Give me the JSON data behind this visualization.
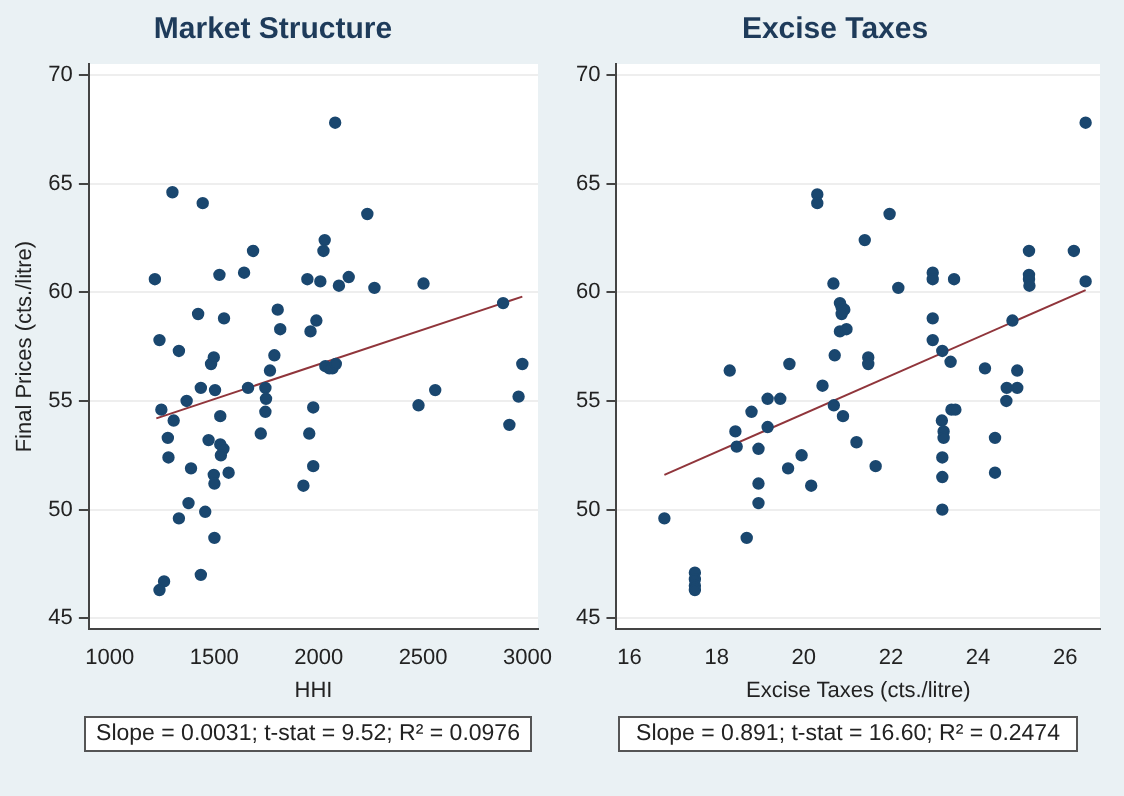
{
  "chart_data": [
    {
      "type": "scatter",
      "title": "Market Structure",
      "xlabel": "HHI",
      "ylabel": "Final Prices (cts./litre)",
      "xlim": [
        900,
        3050
      ],
      "ylim": [
        44.5,
        70.5
      ],
      "xticks": [
        1000,
        1500,
        2000,
        2500,
        3000
      ],
      "yticks": [
        45,
        50,
        55,
        60,
        65,
        70
      ],
      "grid": "y",
      "legend": false,
      "annotations": [
        "Slope = 0.0031; t-stat = 9.52; R² = 0.0976"
      ],
      "series": [
        {
          "color": "#1a476f",
          "marker": "circle",
          "x": [
            1216,
            1238,
            1247,
            1300,
            1331,
            1368,
            1306,
            1423,
            1445,
            1436,
            1485,
            1498,
            1504,
            1525,
            1529,
            1547,
            1643,
            1662,
            1686,
            1723,
            1745,
            1748,
            1745,
            1767,
            1788,
            1804,
            1816,
            1946,
            1961,
            1974,
            1955,
            1989,
            2008,
            2023,
            2029,
            2032,
            2051,
            2066,
            2079,
            2082,
            2097,
            2144,
            2233,
            2267,
            2478,
            2502,
            2558,
            2883,
            2913,
            2957,
            2975,
            1278,
            1281,
            1389,
            1473,
            1529,
            1544,
            1532,
            1498,
            1501,
            1569,
            1377,
            1457,
            1331,
            1501,
            1436,
            1260,
            1238,
            1927,
            1974
          ],
          "values": [
            60.6,
            57.8,
            54.6,
            64.6,
            57.3,
            55.0,
            54.1,
            59.0,
            64.1,
            55.6,
            56.7,
            57.0,
            55.5,
            60.8,
            54.3,
            58.8,
            60.9,
            55.6,
            61.9,
            53.5,
            55.6,
            55.1,
            54.5,
            56.4,
            57.1,
            59.2,
            58.3,
            60.6,
            58.2,
            54.7,
            53.5,
            58.7,
            60.5,
            61.9,
            62.4,
            56.6,
            56.5,
            56.5,
            67.8,
            56.7,
            60.3,
            60.7,
            63.6,
            60.2,
            54.8,
            60.4,
            55.5,
            59.5,
            53.9,
            55.2,
            56.7,
            53.3,
            52.4,
            51.9,
            53.2,
            53.0,
            52.8,
            52.5,
            51.6,
            51.2,
            51.7,
            50.3,
            49.9,
            49.6,
            48.7,
            47.0,
            46.7,
            46.3,
            51.1,
            52.0
          ]
        },
        {
          "type": "line",
          "color": "#90353b",
          "marker": "none",
          "x": [
            1223,
            2975
          ],
          "values": [
            54.2,
            59.8
          ]
        }
      ]
    },
    {
      "type": "scatter",
      "title": "Excise Taxes",
      "xlabel": "Excise Taxes (cts./litre)",
      "xlim": [
        15.7,
        26.8
      ],
      "ylim": [
        44.5,
        70.5
      ],
      "xticks": [
        16,
        18,
        20,
        22,
        24,
        26
      ],
      "yticks": [
        45,
        50,
        55,
        60,
        65,
        70
      ],
      "grid": "y",
      "legend": false,
      "annotations": [
        "Slope = 0.891; t-stat = 16.60; R² = 0.2474"
      ],
      "series": [
        {
          "color": "#1a476f",
          "marker": "circle",
          "x": [
            18.3,
            18.8,
            19.17,
            19.46,
            19.17,
            19.67,
            20.31,
            20.31,
            20.43,
            20.68,
            20.71,
            20.69,
            20.83,
            20.87,
            20.93,
            20.87,
            20.83,
            20.98,
            20.9,
            21.4,
            21.48,
            21.48,
            21.97,
            22.17,
            22.96,
            22.96,
            22.96,
            22.96,
            23.18,
            23.37,
            23.45,
            23.17,
            23.39,
            23.48,
            24.16,
            24.65,
            24.66,
            24.79,
            24.9,
            24.9,
            25.17,
            25.17,
            25.17,
            25.18,
            26.2,
            26.47,
            26.47,
            18.43,
            18.46,
            18.96,
            18.96,
            18.96,
            18.69,
            19.64,
            19.95,
            20.17,
            21.21,
            21.65,
            23.21,
            23.21,
            23.18,
            23.18,
            23.18,
            24.39,
            24.39,
            16.8,
            17.5,
            17.5,
            17.5,
            17.5
          ],
          "values": [
            56.4,
            54.5,
            55.1,
            55.1,
            53.8,
            56.7,
            64.5,
            64.1,
            55.7,
            60.4,
            57.1,
            54.8,
            59.5,
            59.3,
            59.2,
            59.0,
            58.2,
            58.3,
            54.3,
            62.4,
            57.0,
            56.7,
            63.6,
            60.2,
            60.9,
            60.6,
            58.8,
            57.8,
            57.3,
            56.8,
            60.6,
            54.1,
            54.6,
            54.6,
            56.5,
            55.0,
            55.6,
            58.7,
            56.4,
            55.6,
            61.9,
            60.8,
            60.6,
            60.3,
            61.9,
            67.8,
            60.5,
            53.6,
            52.9,
            52.8,
            51.2,
            50.3,
            48.7,
            51.9,
            52.5,
            51.1,
            53.1,
            52.0,
            53.6,
            53.3,
            52.4,
            51.5,
            50.0,
            53.3,
            51.7,
            49.6,
            47.1,
            46.8,
            46.5,
            46.3
          ]
        },
        {
          "type": "line",
          "color": "#90353b",
          "marker": "none",
          "x": [
            16.8,
            26.47
          ],
          "values": [
            51.6,
            60.1
          ]
        }
      ]
    }
  ]
}
